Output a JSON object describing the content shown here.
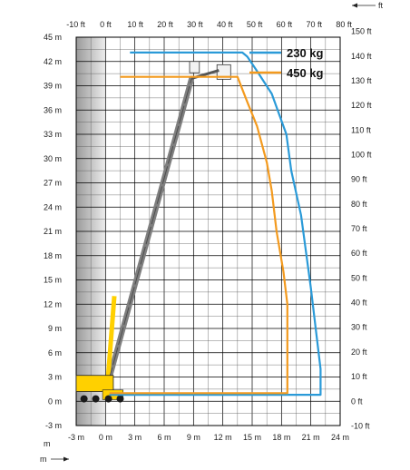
{
  "chart_data": {
    "type": "line",
    "title": "",
    "axes": {
      "x_bottom": {
        "unit": "m",
        "range": [
          -3,
          24
        ],
        "ticks": [
          "-3 m",
          "0 m",
          "3 m",
          "6 m",
          "9 m",
          "12 m",
          "15 m",
          "18 m",
          "21 m",
          "24 m"
        ]
      },
      "x_top": {
        "unit": "ft",
        "ticks": [
          "-10 ft",
          "0 ft",
          "10 ft",
          "20 ft",
          "30 ft",
          "40 ft",
          "50 ft",
          "60 ft",
          "70 ft",
          "80 ft"
        ]
      },
      "y_left": {
        "unit": "m",
        "range": [
          -3,
          45
        ],
        "ticks": [
          "45 m",
          "42 m",
          "39 m",
          "36 m",
          "33 m",
          "30 m",
          "27 m",
          "24 m",
          "21 m",
          "18 m",
          "15 m",
          "12 m",
          "9 m",
          "6 m",
          "3 m",
          "0 m",
          "-3 m"
        ]
      },
      "y_right": {
        "unit": "ft",
        "ticks": [
          "150 ft",
          "140 ft",
          "130 ft",
          "120 ft",
          "110 ft",
          "100 ft",
          "90 ft",
          "80 ft",
          "70 ft",
          "60 ft",
          "50 ft",
          "40 ft",
          "30 ft",
          "20 ft",
          "10 ft",
          "0 ft",
          "-10 ft"
        ]
      },
      "grid": true
    },
    "unit_labels": {
      "top_right": "ft",
      "bottom_left": "m"
    },
    "legend": {
      "placement": "top-right"
    },
    "series": [
      {
        "name": "230 kg",
        "color": "#2a9ad8",
        "points": [
          [
            2.5,
            43.1
          ],
          [
            14,
            43.1
          ],
          [
            14.5,
            42.6
          ],
          [
            15.5,
            40.8
          ],
          [
            17,
            38
          ],
          [
            18.5,
            33
          ],
          [
            19,
            28.5
          ],
          [
            20,
            23
          ],
          [
            21,
            14
          ],
          [
            21.6,
            8
          ],
          [
            22,
            4
          ],
          [
            22,
            0.8
          ],
          [
            0.4,
            0.8
          ]
        ]
      },
      {
        "name": "450 kg",
        "color": "#f39a1e",
        "points": [
          [
            1.5,
            40.1
          ],
          [
            13.5,
            40.1
          ],
          [
            14.5,
            37
          ],
          [
            15.5,
            34
          ],
          [
            16.5,
            29.5
          ],
          [
            17,
            26
          ],
          [
            17.5,
            21
          ],
          [
            18.2,
            16
          ],
          [
            18.6,
            12
          ],
          [
            18.6,
            1
          ],
          [
            0.4,
            1
          ]
        ]
      }
    ]
  }
}
